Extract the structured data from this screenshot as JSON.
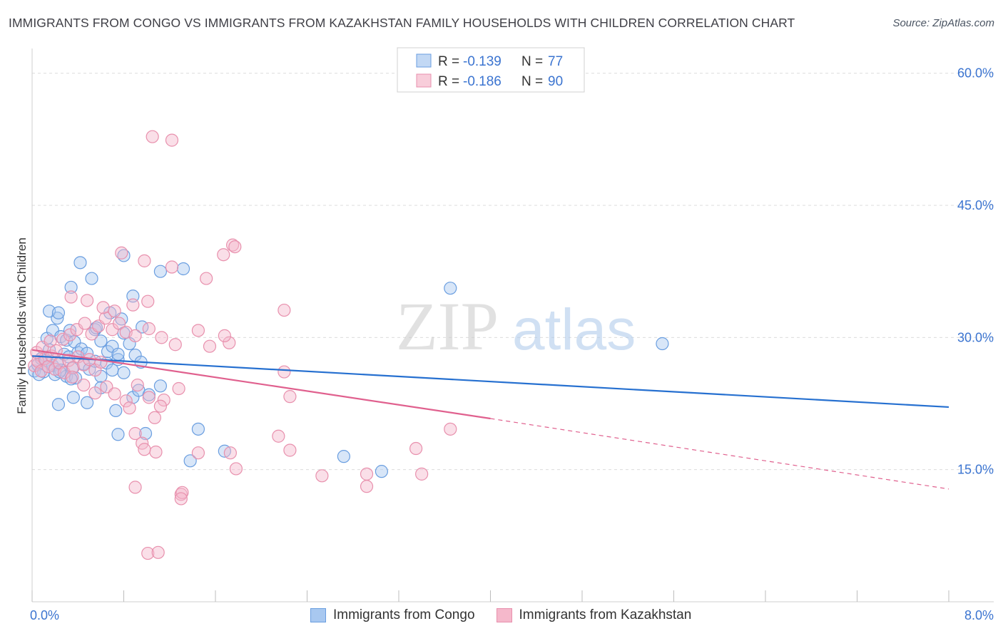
{
  "title": "IMMIGRANTS FROM CONGO VS IMMIGRANTS FROM KAZAKHSTAN FAMILY HOUSEHOLDS WITH CHILDREN CORRELATION CHART",
  "source": "Source: ZipAtlas.com",
  "watermark": {
    "zip": "ZIP",
    "atlas": "atlas"
  },
  "colors": {
    "blue_fill": "#a8c8f0",
    "blue_stroke": "#6a9ee0",
    "blue_line": "#2670d0",
    "pink_fill": "#f5b8cb",
    "pink_stroke": "#e890ad",
    "pink_line": "#e0608e",
    "tick_text": "#3b74d0",
    "grid": "#dcdcdc"
  },
  "legend_top": [
    {
      "r_label": "R = ",
      "r_value": "-0.139",
      "n_label": "N = ",
      "n_value": "77"
    },
    {
      "r_label": "R = ",
      "r_value": "-0.186",
      "n_label": "N = ",
      "n_value": "90"
    }
  ],
  "chart_data": {
    "type": "scatter",
    "title": "IMMIGRANTS FROM CONGO VS IMMIGRANTS FROM KAZAKHSTAN FAMILY HOUSEHOLDS WITH CHILDREN CORRELATION CHART",
    "xlabel": "",
    "ylabel": "Family Households with Children",
    "xlim": [
      0,
      8
    ],
    "ylim": [
      0,
      62
    ],
    "x_tick_labels": [
      "0.0%",
      "8.0%"
    ],
    "y_ticks": [
      15,
      30,
      45,
      60
    ],
    "y_tick_labels": [
      "15.0%",
      "30.0%",
      "45.0%",
      "60.0%"
    ],
    "grid": true,
    "legend_position": "top-center",
    "series": [
      {
        "name": "Immigrants from Congo",
        "r": -0.139,
        "n": 77,
        "trend": {
          "x": [
            0,
            8
          ],
          "y": [
            27.9,
            22.1
          ]
        },
        "points": [
          [
            0.02,
            26.2
          ],
          [
            0.05,
            26.9
          ],
          [
            0.08,
            27.6
          ],
          [
            0.1,
            26.1
          ],
          [
            0.12,
            27.4
          ],
          [
            0.15,
            28.6
          ],
          [
            0.18,
            26.8
          ],
          [
            0.2,
            25.8
          ],
          [
            0.22,
            27.2
          ],
          [
            0.25,
            26.3
          ],
          [
            0.28,
            28.1
          ],
          [
            0.3,
            25.6
          ],
          [
            0.32,
            27.8
          ],
          [
            0.35,
            26.5
          ],
          [
            0.38,
            25.4
          ],
          [
            0.4,
            28.3
          ],
          [
            0.45,
            27.0
          ],
          [
            0.5,
            26.4
          ],
          [
            0.55,
            27.3
          ],
          [
            0.6,
            25.6
          ],
          [
            0.65,
            27.1
          ],
          [
            0.7,
            26.3
          ],
          [
            0.75,
            27.5
          ],
          [
            0.8,
            26.0
          ],
          [
            0.06,
            25.8
          ],
          [
            0.14,
            26.7
          ],
          [
            0.24,
            26.1
          ],
          [
            0.34,
            25.3
          ],
          [
            0.13,
            29.9
          ],
          [
            0.18,
            30.8
          ],
          [
            0.22,
            32.2
          ],
          [
            0.25,
            30.1
          ],
          [
            0.3,
            29.7
          ],
          [
            0.33,
            30.8
          ],
          [
            0.37,
            29.5
          ],
          [
            0.43,
            28.7
          ],
          [
            0.48,
            28.2
          ],
          [
            0.55,
            30.9
          ],
          [
            0.6,
            29.6
          ],
          [
            0.66,
            28.4
          ],
          [
            0.7,
            29.0
          ],
          [
            0.75,
            28.1
          ],
          [
            0.8,
            30.5
          ],
          [
            0.85,
            29.3
          ],
          [
            0.9,
            28.0
          ],
          [
            0.95,
            27.2
          ],
          [
            0.15,
            33.0
          ],
          [
            0.23,
            32.8
          ],
          [
            0.34,
            35.7
          ],
          [
            0.56,
            31.1
          ],
          [
            0.68,
            32.8
          ],
          [
            0.78,
            32.1
          ],
          [
            0.88,
            34.7
          ],
          [
            0.96,
            31.2
          ],
          [
            0.42,
            38.5
          ],
          [
            0.52,
            36.7
          ],
          [
            0.8,
            39.3
          ],
          [
            1.12,
            37.5
          ],
          [
            1.32,
            37.8
          ],
          [
            0.23,
            22.4
          ],
          [
            0.36,
            23.2
          ],
          [
            0.48,
            22.6
          ],
          [
            0.6,
            24.3
          ],
          [
            0.73,
            21.7
          ],
          [
            0.88,
            23.2
          ],
          [
            0.93,
            24.0
          ],
          [
            1.02,
            23.5
          ],
          [
            1.12,
            24.5
          ],
          [
            0.75,
            19.0
          ],
          [
            0.99,
            19.1
          ],
          [
            1.45,
            19.6
          ],
          [
            1.68,
            17.1
          ],
          [
            1.38,
            16.0
          ],
          [
            2.72,
            16.5
          ],
          [
            3.05,
            14.8
          ],
          [
            3.65,
            35.6
          ],
          [
            5.5,
            29.3
          ]
        ]
      },
      {
        "name": "Immigrants from Kazakhstan",
        "r": -0.186,
        "n": 90,
        "trend": {
          "x": [
            0,
            4.0
          ],
          "y": [
            28.6,
            20.8
          ]
        },
        "trend_dashed": {
          "x": [
            4.0,
            8
          ],
          "y": [
            20.8,
            12.8
          ]
        },
        "points": [
          [
            0.02,
            26.8
          ],
          [
            0.05,
            27.3
          ],
          [
            0.08,
            26.2
          ],
          [
            0.11,
            27.6
          ],
          [
            0.14,
            26.7
          ],
          [
            0.17,
            27.9
          ],
          [
            0.2,
            26.4
          ],
          [
            0.24,
            27.1
          ],
          [
            0.28,
            26.0
          ],
          [
            0.32,
            27.4
          ],
          [
            0.36,
            26.6
          ],
          [
            0.4,
            27.8
          ],
          [
            0.45,
            26.9
          ],
          [
            0.5,
            27.5
          ],
          [
            0.55,
            26.3
          ],
          [
            0.6,
            27.2
          ],
          [
            0.04,
            28.3
          ],
          [
            0.09,
            28.9
          ],
          [
            0.16,
            29.6
          ],
          [
            0.21,
            28.5
          ],
          [
            0.27,
            29.8
          ],
          [
            0.33,
            30.3
          ],
          [
            0.39,
            30.9
          ],
          [
            0.46,
            31.6
          ],
          [
            0.52,
            30.4
          ],
          [
            0.58,
            31.3
          ],
          [
            0.64,
            32.2
          ],
          [
            0.7,
            30.9
          ],
          [
            0.76,
            31.6
          ],
          [
            0.82,
            30.6
          ],
          [
            0.9,
            30.2
          ],
          [
            1.02,
            31.0
          ],
          [
            0.34,
            34.6
          ],
          [
            0.48,
            34.2
          ],
          [
            0.62,
            33.4
          ],
          [
            0.72,
            33.0
          ],
          [
            0.88,
            33.7
          ],
          [
            1.01,
            34.1
          ],
          [
            1.13,
            30.0
          ],
          [
            1.25,
            29.2
          ],
          [
            1.45,
            30.8
          ],
          [
            1.55,
            29.0
          ],
          [
            1.72,
            29.4
          ],
          [
            2.2,
            33.1
          ],
          [
            0.35,
            25.5
          ],
          [
            0.45,
            24.6
          ],
          [
            0.55,
            23.7
          ],
          [
            0.65,
            24.4
          ],
          [
            0.72,
            23.6
          ],
          [
            0.82,
            22.8
          ],
          [
            0.92,
            24.6
          ],
          [
            1.02,
            23.2
          ],
          [
            1.15,
            22.9
          ],
          [
            0.85,
            22.0
          ],
          [
            1.12,
            22.2
          ],
          [
            1.28,
            24.2
          ],
          [
            2.2,
            26.1
          ],
          [
            0.78,
            39.6
          ],
          [
            0.98,
            38.7
          ],
          [
            1.22,
            38.0
          ],
          [
            1.52,
            36.7
          ],
          [
            1.67,
            39.4
          ],
          [
            1.75,
            40.5
          ],
          [
            1.77,
            40.3
          ],
          [
            0.9,
            19.1
          ],
          [
            0.96,
            18.0
          ],
          [
            1.08,
            17.0
          ],
          [
            0.98,
            17.3
          ],
          [
            1.07,
            20.9
          ],
          [
            1.45,
            16.9
          ],
          [
            1.73,
            16.9
          ],
          [
            1.78,
            15.1
          ],
          [
            2.15,
            18.8
          ],
          [
            2.25,
            23.3
          ],
          [
            2.92,
            14.5
          ],
          [
            2.92,
            13.1
          ],
          [
            3.4,
            14.5
          ],
          [
            2.25,
            17.2
          ],
          [
            3.65,
            19.6
          ],
          [
            3.35,
            17.4
          ],
          [
            1.3,
            12.2
          ],
          [
            1.31,
            12.4
          ],
          [
            1.3,
            11.7
          ],
          [
            1.01,
            5.5
          ],
          [
            1.1,
            5.6
          ],
          [
            1.05,
            52.8
          ],
          [
            1.22,
            52.4
          ],
          [
            0.9,
            13.0
          ],
          [
            2.53,
            14.3
          ],
          [
            1.68,
            30.2
          ]
        ]
      }
    ]
  },
  "legend_bottom": [
    {
      "label": "Immigrants from Congo"
    },
    {
      "label": "Immigrants from Kazakhstan"
    }
  ]
}
